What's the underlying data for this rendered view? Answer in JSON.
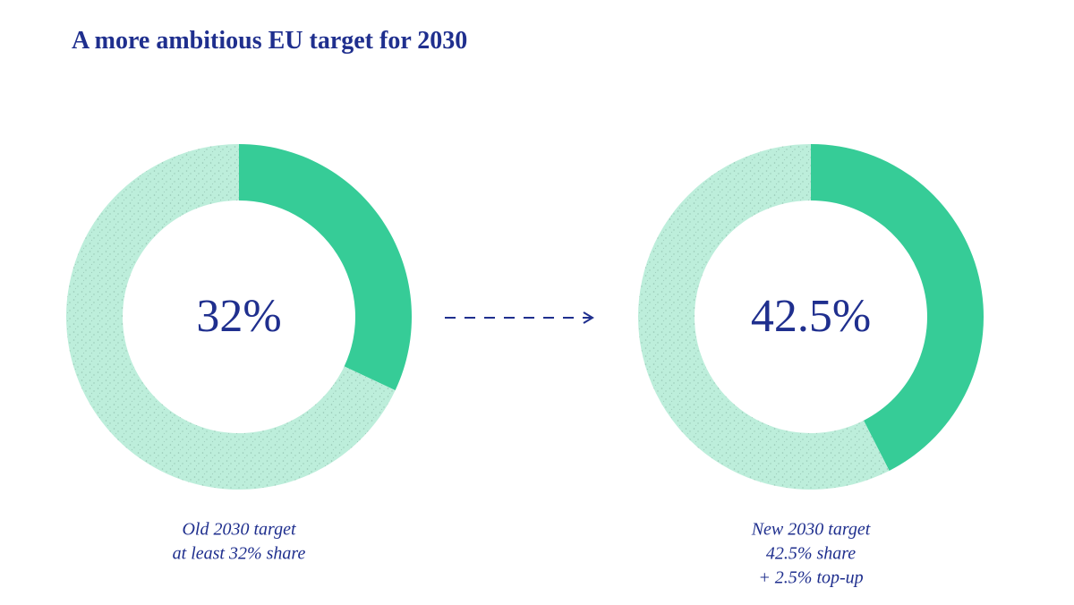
{
  "title": "A more ambitious EU target for 2030",
  "chart_data": [
    {
      "type": "pie",
      "values": [
        32,
        68
      ],
      "value_labels": [
        "32%",
        null
      ],
      "colors": [
        "#36cc97",
        "#bdeedb"
      ],
      "caption": [
        "Old 2030 target",
        "at least 32% share"
      ]
    },
    {
      "type": "pie",
      "values": [
        42.5,
        57.5
      ],
      "value_labels": [
        "42.5%",
        null
      ],
      "colors": [
        "#36cc97",
        "#bdeedb"
      ],
      "caption": [
        "New 2030 target",
        "42.5% share",
        "+ 2.5% top-up"
      ]
    }
  ]
}
